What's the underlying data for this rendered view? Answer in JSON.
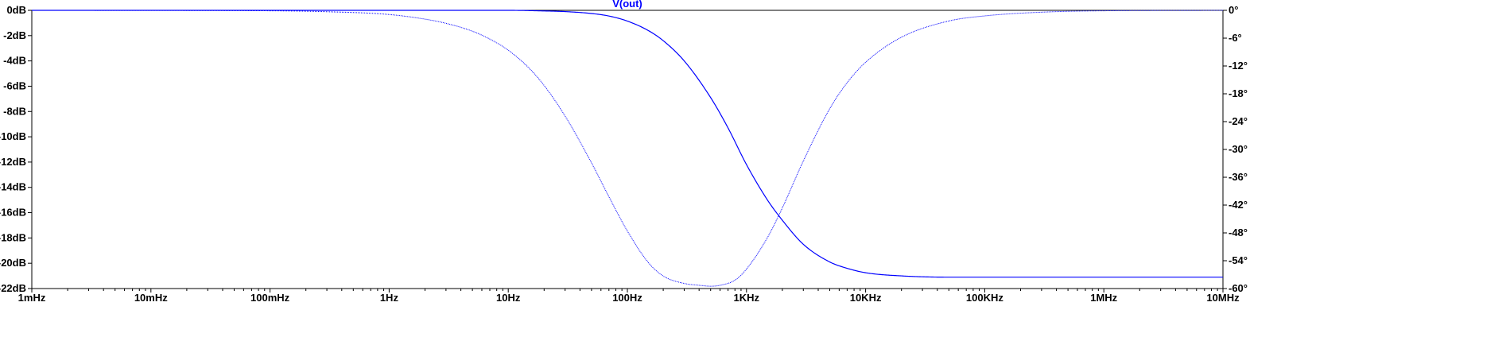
{
  "chart_data": {
    "type": "line",
    "title": "V(out)",
    "x_scale": "log",
    "xlim": [
      0.001,
      10000000
    ],
    "x_ticks": [
      {
        "value": 0.001,
        "label": "1mHz"
      },
      {
        "value": 0.01,
        "label": "10mHz"
      },
      {
        "value": 0.1,
        "label": "100mHz"
      },
      {
        "value": 1,
        "label": "1Hz"
      },
      {
        "value": 10,
        "label": "10Hz"
      },
      {
        "value": 100,
        "label": "100Hz"
      },
      {
        "value": 1000,
        "label": "1KHz"
      },
      {
        "value": 10000,
        "label": "10KHz"
      },
      {
        "value": 100000,
        "label": "100KHz"
      },
      {
        "value": 1000000,
        "label": "1MHz"
      },
      {
        "value": 10000000,
        "label": "10MHz"
      }
    ],
    "ylim_left": [
      -22,
      0
    ],
    "y_left_ticks": [
      {
        "value": 0,
        "label": "0dB"
      },
      {
        "value": -2,
        "label": "-2dB"
      },
      {
        "value": -4,
        "label": "-4dB"
      },
      {
        "value": -6,
        "label": "-6dB"
      },
      {
        "value": -8,
        "label": "-8dB"
      },
      {
        "value": -10,
        "label": "-10dB"
      },
      {
        "value": -12,
        "label": "-12dB"
      },
      {
        "value": -14,
        "label": "-14dB"
      },
      {
        "value": -16,
        "label": "-16dB"
      },
      {
        "value": -18,
        "label": "-18dB"
      },
      {
        "value": -20,
        "label": "-20dB"
      },
      {
        "value": -22,
        "label": "-22dB"
      }
    ],
    "ylim_right": [
      -60,
      0
    ],
    "y_right_ticks": [
      {
        "value": 0,
        "label": "0°"
      },
      {
        "value": -6,
        "label": "-6°"
      },
      {
        "value": -12,
        "label": "-12°"
      },
      {
        "value": -18,
        "label": "-18°"
      },
      {
        "value": -24,
        "label": "-24°"
      },
      {
        "value": -30,
        "label": "-30°"
      },
      {
        "value": -36,
        "label": "-36°"
      },
      {
        "value": -42,
        "label": "-42°"
      },
      {
        "value": -48,
        "label": "-48°"
      },
      {
        "value": -54,
        "label": "-54°"
      },
      {
        "value": -60,
        "label": "-60°"
      }
    ],
    "grid": false,
    "colors": {
      "trace": "#0000ff",
      "axes": "#000000",
      "background": "#ffffff"
    },
    "series": [
      {
        "quantity": "magnitude",
        "axis": "left",
        "style": "solid",
        "x": [
          0.001,
          0.01,
          0.1,
          1,
          10,
          20,
          30,
          50,
          70,
          100,
          150,
          200,
          300,
          500,
          700,
          1000,
          1500,
          2000,
          3000,
          5000,
          7000,
          10000,
          20000,
          50000,
          100000,
          1000000,
          10000000
        ],
        "y": [
          0,
          0,
          0,
          0,
          0,
          -0.05,
          -0.1,
          -0.25,
          -0.45,
          -0.85,
          -1.6,
          -2.4,
          -4.0,
          -6.9,
          -9.3,
          -12.2,
          -15.0,
          -16.6,
          -18.5,
          -19.9,
          -20.4,
          -20.75,
          -21.0,
          -21.1,
          -21.1,
          -21.1,
          -21.1
        ]
      },
      {
        "quantity": "phase",
        "axis": "right",
        "style": "dotted",
        "x": [
          0.001,
          0.1,
          0.3,
          1,
          2,
          3,
          5,
          7,
          10,
          15,
          20,
          30,
          50,
          70,
          100,
          150,
          200,
          300,
          400,
          500,
          600,
          800,
          1000,
          1500,
          2000,
          3000,
          5000,
          7000,
          10000,
          20000,
          50000,
          100000,
          300000,
          1000000,
          10000000
        ],
        "y": [
          0,
          -0.1,
          -0.3,
          -0.9,
          -1.9,
          -2.8,
          -4.5,
          -6.2,
          -8.6,
          -12.5,
          -16.2,
          -22.8,
          -32.9,
          -40.2,
          -47.6,
          -54.4,
          -57.3,
          -58.9,
          -59.3,
          -59.5,
          -59.3,
          -58.2,
          -55.8,
          -49.0,
          -42.6,
          -32.5,
          -21.2,
          -15.6,
          -11.2,
          -5.8,
          -2.3,
          -1.2,
          -0.4,
          -0.1,
          0
        ]
      }
    ]
  }
}
